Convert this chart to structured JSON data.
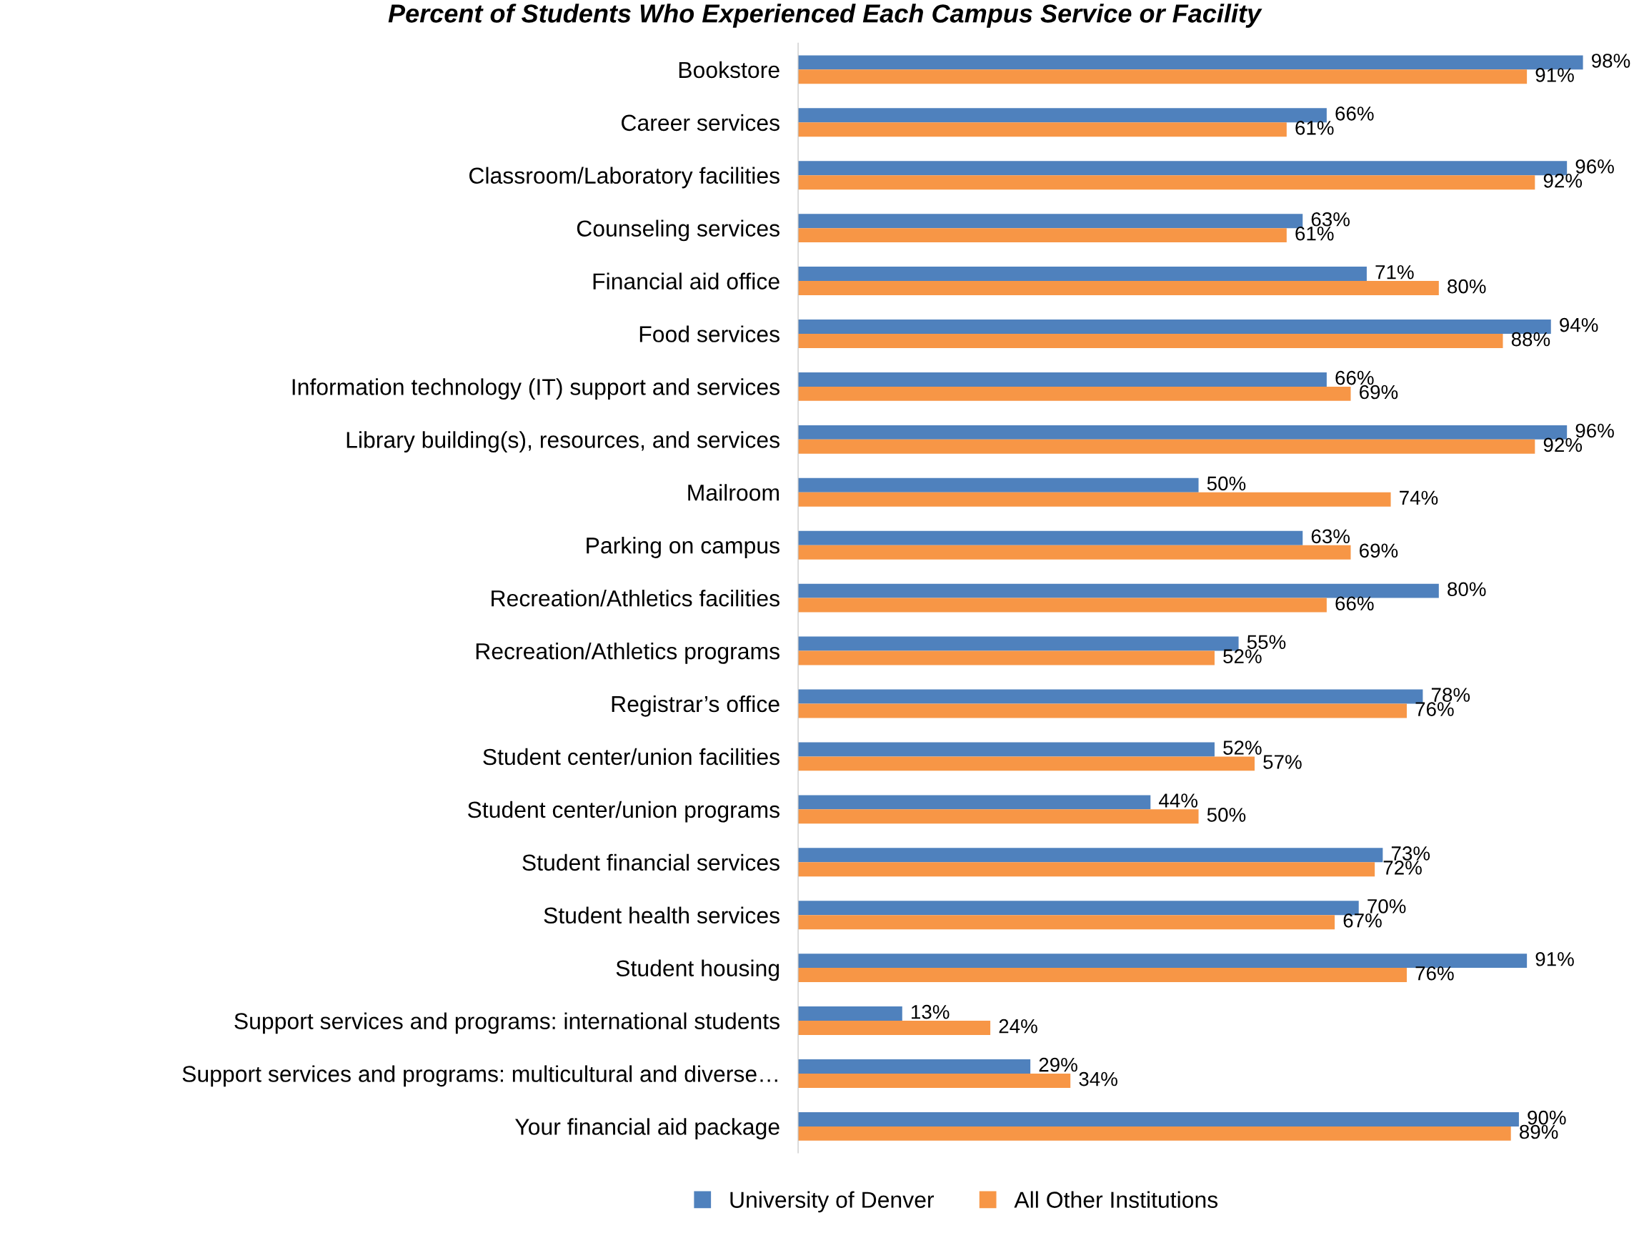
{
  "chart_data": {
    "type": "bar",
    "orientation": "horizontal",
    "title": "Percent of Students Who Experienced Each Campus Service or Facility",
    "categories": [
      "Bookstore",
      "Career services",
      "Classroom/Laboratory facilities",
      "Counseling services",
      "Financial aid office",
      "Food services",
      "Information technology (IT) support and services",
      "Library building(s), resources, and services",
      "Mailroom",
      "Parking on campus",
      "Recreation/Athletics facilities",
      "Recreation/Athletics programs",
      "Registrar’s office",
      "Student center/union facilities",
      "Student center/union programs",
      "Student financial services",
      "Student health services",
      "Student housing",
      "Support services and programs: international students",
      "Support services and programs: multicultural and diverse…",
      "Your financial aid package"
    ],
    "series": [
      {
        "name": "University of Denver",
        "color": "#4f81bd",
        "values": [
          98,
          66,
          96,
          63,
          71,
          94,
          66,
          96,
          50,
          63,
          80,
          55,
          78,
          52,
          44,
          73,
          70,
          91,
          13,
          29,
          90
        ],
        "value_labels": [
          "98%",
          "66%",
          "96%",
          "63%",
          "71%",
          "94%",
          "66%",
          "96%",
          "50%",
          "63%",
          "80%",
          "55%",
          "78%",
          "52%",
          "44%",
          "73%",
          "70%",
          "91%",
          "13%",
          "29%",
          "90%"
        ]
      },
      {
        "name": "All Other Institutions",
        "color": "#f79646",
        "values": [
          91,
          61,
          92,
          61,
          80,
          88,
          69,
          92,
          74,
          69,
          66,
          52,
          76,
          57,
          50,
          72,
          67,
          76,
          24,
          34,
          89
        ],
        "value_labels": [
          "91%",
          "61%",
          "92%",
          "61%",
          "80%",
          "88%",
          "69%",
          "92%",
          "74%",
          "69%",
          "66%",
          "52%",
          "76%",
          "57%",
          "50%",
          "72%",
          "67%",
          "76%",
          "24%",
          "34%",
          "89%"
        ]
      }
    ],
    "legend": "bottom",
    "grid": false
  }
}
